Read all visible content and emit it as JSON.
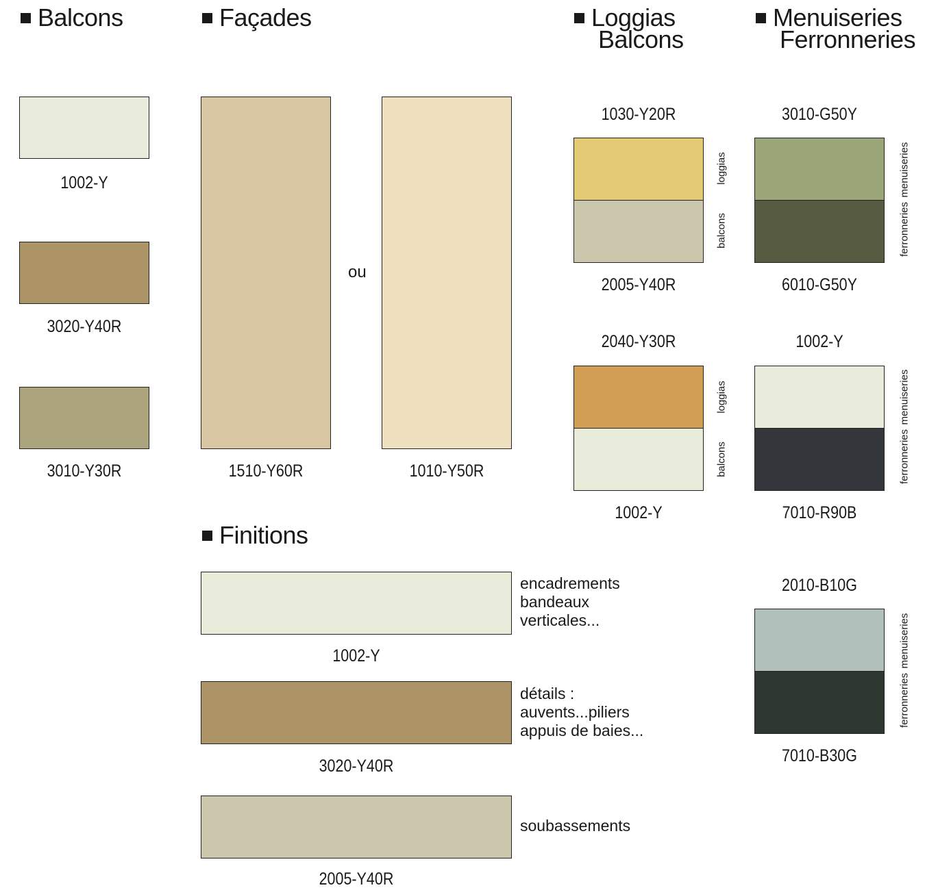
{
  "headings": {
    "balcons": "Balcons",
    "facades": "Façades",
    "loggias_line1": "Loggias",
    "loggias_line2": "Balcons",
    "menuiseries_line1": "Menuiseries",
    "menuiseries_line2": "Ferronneries",
    "finitions": "Finitions"
  },
  "balcons": [
    {
      "code": "1002-Y",
      "color": "#E8EBD9"
    },
    {
      "code": "3020-Y40R",
      "color": "#AC9466"
    },
    {
      "code": "3010-Y30R",
      "color": "#ACA47C"
    }
  ],
  "facades": {
    "left": {
      "code": "1510-Y60R",
      "color": "#D9C6A3"
    },
    "or_text": "ou",
    "right": {
      "code": "1010-Y50R",
      "color": "#EEE0BF"
    }
  },
  "loggias": [
    {
      "top_code": "1030-Y20R",
      "top_color": "#E2CB74",
      "top_label": "loggias",
      "bottom_code": "2005-Y40R",
      "bottom_color": "#CCC6AD",
      "bottom_label": "balcons"
    },
    {
      "top_code": "2040-Y30R",
      "top_color": "#D29D54",
      "top_label": "loggias",
      "bottom_code": "1002-Y",
      "bottom_color": "#E8EBD9",
      "bottom_label": "balcons"
    }
  ],
  "menuiseries": [
    {
      "top_code": "3010-G50Y",
      "top_color": "#9AA677",
      "top_label": "menuiseries",
      "bottom_code": "6010-G50Y",
      "bottom_color": "#575B42",
      "bottom_label": "ferronneries"
    },
    {
      "top_code": "1002-Y",
      "top_color": "#E8EBD9",
      "top_label": "menuiseries",
      "bottom_code": "7010-R90B",
      "bottom_color": "#33363B",
      "bottom_label": "ferronneries"
    },
    {
      "top_code": "2010-B10G",
      "top_color": "#B2C0BB",
      "top_label": "menuiseries",
      "bottom_code": "7010-B30G",
      "bottom_color": "#2F3731",
      "bottom_label": "ferronneries"
    }
  ],
  "finitions": [
    {
      "code": "1002-Y",
      "color": "#E8EBD9",
      "notes": [
        "encadrements",
        "bandeaux",
        "verticales..."
      ]
    },
    {
      "code": "3020-Y40R",
      "color": "#AC9466",
      "notes": [
        "détails :",
        "auvents...piliers",
        "appuis de baies..."
      ]
    },
    {
      "code": "2005-Y40R",
      "color": "#CCC6AD",
      "notes": [
        "soubassements"
      ]
    }
  ]
}
